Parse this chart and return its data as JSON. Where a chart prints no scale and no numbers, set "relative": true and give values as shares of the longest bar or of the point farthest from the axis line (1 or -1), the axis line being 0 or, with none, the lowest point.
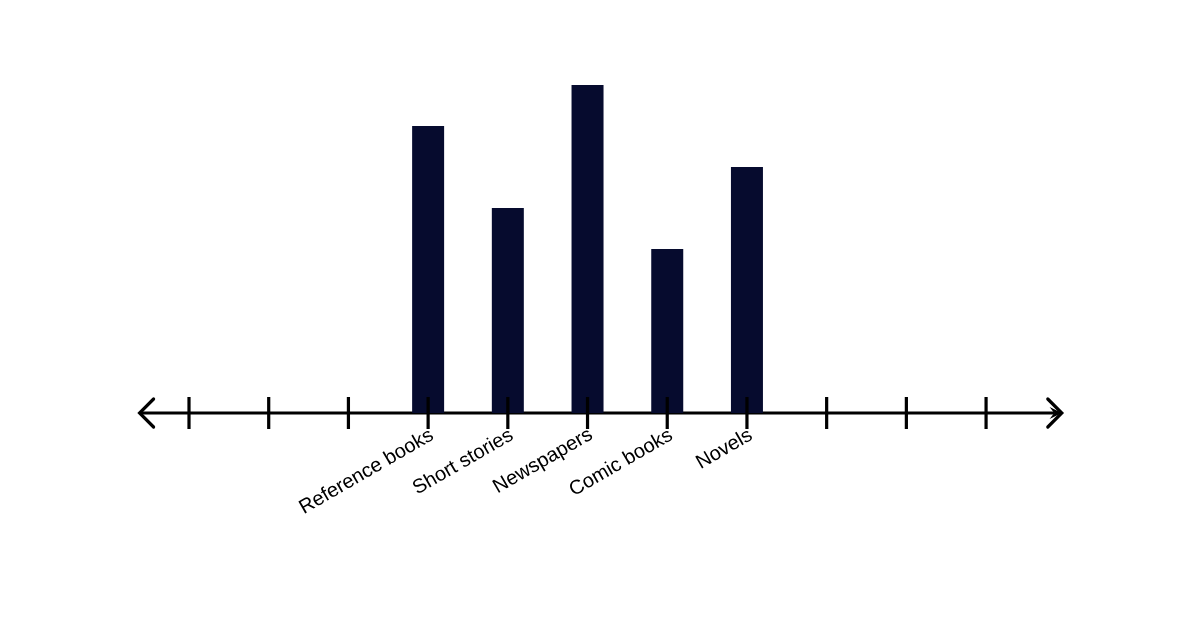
{
  "chart_data": {
    "type": "bar",
    "relative": true,
    "color": "#060b2e",
    "categories": [
      null,
      null,
      null,
      "Reference books",
      "Short stories",
      "Newspapers",
      "Comic books",
      "Novels",
      null,
      null,
      null
    ],
    "values": [
      null,
      null,
      null,
      0.875,
      0.625,
      1,
      0.5,
      0.75,
      null,
      null,
      null
    ]
  }
}
